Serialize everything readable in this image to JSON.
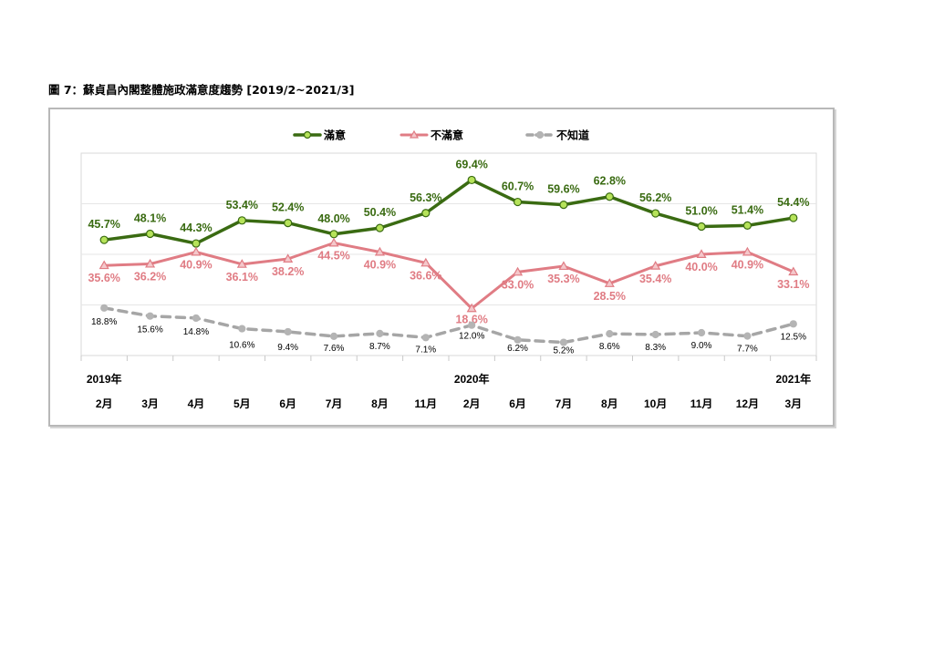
{
  "figure_title": "圖 7：蘇貞昌內閣整體施政滿意度趨勢  [2019/2~2021/3]",
  "colors": {
    "satisfied": "#3a6b12",
    "satisfied_marker": "#b6e35a",
    "dissatisfied": "#e07c84",
    "dissatisfied_marker": "#f4c8cb",
    "unknown": "#a6a6a6",
    "unknown_marker": "#b4b4b4"
  },
  "chart_data": {
    "type": "line",
    "title": "",
    "xlabel": "",
    "ylabel": "",
    "ylim": [
      0,
      80
    ],
    "grid": true,
    "legend_placement": "top-center",
    "year_labels": [
      {
        "index": 0,
        "label": "2019年"
      },
      {
        "index": 8,
        "label": "2020年"
      },
      {
        "index": 15,
        "label": "2021年"
      }
    ],
    "categories": [
      "2月",
      "3月",
      "4月",
      "5月",
      "6月",
      "7月",
      "8月",
      "11月",
      "2月",
      "6月",
      "7月",
      "8月",
      "10月",
      "11月",
      "12月",
      "3月"
    ],
    "series": [
      {
        "name": "滿意",
        "values": [
          45.7,
          48.1,
          44.3,
          53.4,
          52.4,
          48.0,
          50.4,
          56.3,
          69.4,
          60.7,
          59.6,
          62.8,
          56.2,
          51.0,
          51.4,
          54.4
        ],
        "labels": [
          "45.7%",
          "48.1%",
          "44.3%",
          "53.4%",
          "52.4%",
          "48.0%",
          "50.4%",
          "56.3%",
          "69.4%",
          "60.7%",
          "59.6%",
          "62.8%",
          "56.2%",
          "51.0%",
          "51.4%",
          "54.4%"
        ]
      },
      {
        "name": "不滿意",
        "values": [
          35.6,
          36.2,
          40.9,
          36.1,
          38.2,
          44.5,
          40.9,
          36.6,
          18.6,
          33.0,
          35.3,
          28.5,
          35.4,
          40.0,
          40.9,
          33.1
        ],
        "labels": [
          "35.6%",
          "36.2%",
          "40.9%",
          "36.1%",
          "38.2%",
          "44.5%",
          "40.9%",
          "36.6%",
          "18.6%",
          "33.0%",
          "35.3%",
          "28.5%",
          "35.4%",
          "40.0%",
          "40.9%",
          "33.1%"
        ]
      },
      {
        "name": "不知道",
        "values": [
          18.8,
          15.6,
          14.8,
          10.6,
          9.4,
          7.6,
          8.7,
          7.1,
          12.0,
          6.2,
          5.2,
          8.6,
          8.3,
          9.0,
          7.7,
          12.5
        ],
        "labels": [
          "18.8%",
          "15.6%",
          "14.8%",
          "10.6%",
          "9.4%",
          "7.6%",
          "8.7%",
          "7.1%",
          "12.0%",
          "6.2%",
          "5.2%",
          "8.6%",
          "8.3%",
          "9.0%",
          "7.7%",
          "12.5%"
        ]
      }
    ]
  }
}
